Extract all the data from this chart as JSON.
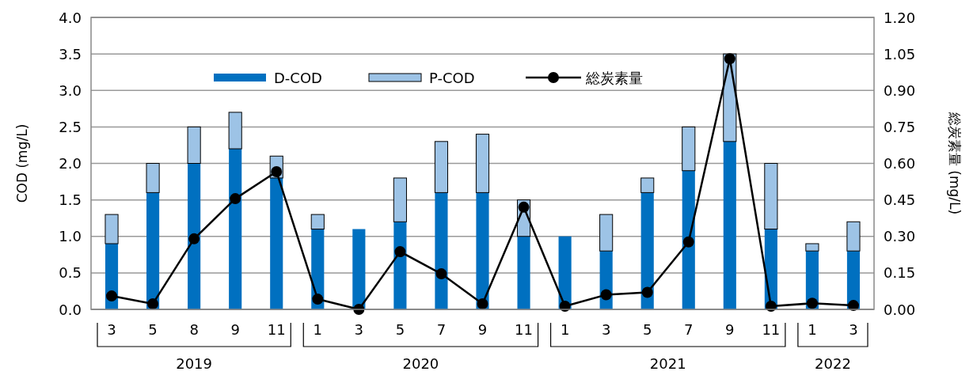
{
  "chart_data": {
    "type": "bar",
    "stacked": true,
    "ylabel": "COD (mg/L)",
    "y2label": "総炭素量 (mg/L)",
    "categories": [
      "3",
      "5",
      "8",
      "9",
      "11",
      "1",
      "3",
      "5",
      "7",
      "9",
      "11",
      "1",
      "3",
      "5",
      "7",
      "9",
      "11",
      "1",
      "3"
    ],
    "series": [
      {
        "name": "D-COD",
        "color": "#0070c0",
        "values": [
          0.9,
          1.6,
          2.0,
          2.2,
          1.8,
          1.1,
          1.1,
          1.2,
          1.6,
          1.6,
          1.0,
          1.0,
          0.8,
          1.6,
          1.9,
          2.3,
          1.1,
          0.8,
          0.8
        ]
      },
      {
        "name": "P-COD",
        "color": "#9dc3e6",
        "values": [
          0.4,
          0.4,
          0.5,
          0.5,
          0.3,
          0.2,
          0,
          0.6,
          0.7,
          0.8,
          0.5,
          0,
          0.5,
          0.2,
          0.6,
          1.2,
          0.9,
          0.1,
          0.4
        ]
      },
      {
        "name": "総炭素量",
        "type": "line",
        "axis": "y2",
        "color": "#000000",
        "marker": "circle",
        "values": [
          0.055,
          0.023,
          0.29,
          0.455,
          0.566,
          0.042,
          0,
          0.237,
          0.146,
          0.023,
          0.42,
          0.013,
          0.06,
          0.07,
          0.277,
          1.03,
          0.013,
          0.025,
          0.016
        ]
      }
    ],
    "ylim": [
      0,
      4
    ],
    "yticks": [
      {
        "value": 0,
        "label": "0.0"
      },
      {
        "value": 0.5,
        "label": "0.5"
      },
      {
        "value": 1,
        "label": "1.0"
      },
      {
        "value": 1.5,
        "label": "1.5"
      },
      {
        "value": 2,
        "label": "2.0"
      },
      {
        "value": 2.5,
        "label": "2.5"
      },
      {
        "value": 3,
        "label": "3.0"
      },
      {
        "value": 3.5,
        "label": "3.5"
      },
      {
        "value": 4,
        "label": "4.0"
      }
    ],
    "y2lim": [
      0,
      1.2
    ],
    "y2ticks": [
      {
        "value": 0,
        "label": "0.00"
      },
      {
        "value": 0.15,
        "label": "0.15"
      },
      {
        "value": 0.3,
        "label": "0.30"
      },
      {
        "value": 0.45,
        "label": "0.45"
      },
      {
        "value": 0.6,
        "label": "0.60"
      },
      {
        "value": 0.75,
        "label": "0.75"
      },
      {
        "value": 0.9,
        "label": "0.90"
      },
      {
        "value": 1.05,
        "label": "1.05"
      },
      {
        "value": 1.2,
        "label": "1.20"
      }
    ],
    "annotations": [
      "2019",
      "2020",
      "2021",
      "2022"
    ],
    "grid": "y",
    "legend": "top"
  }
}
